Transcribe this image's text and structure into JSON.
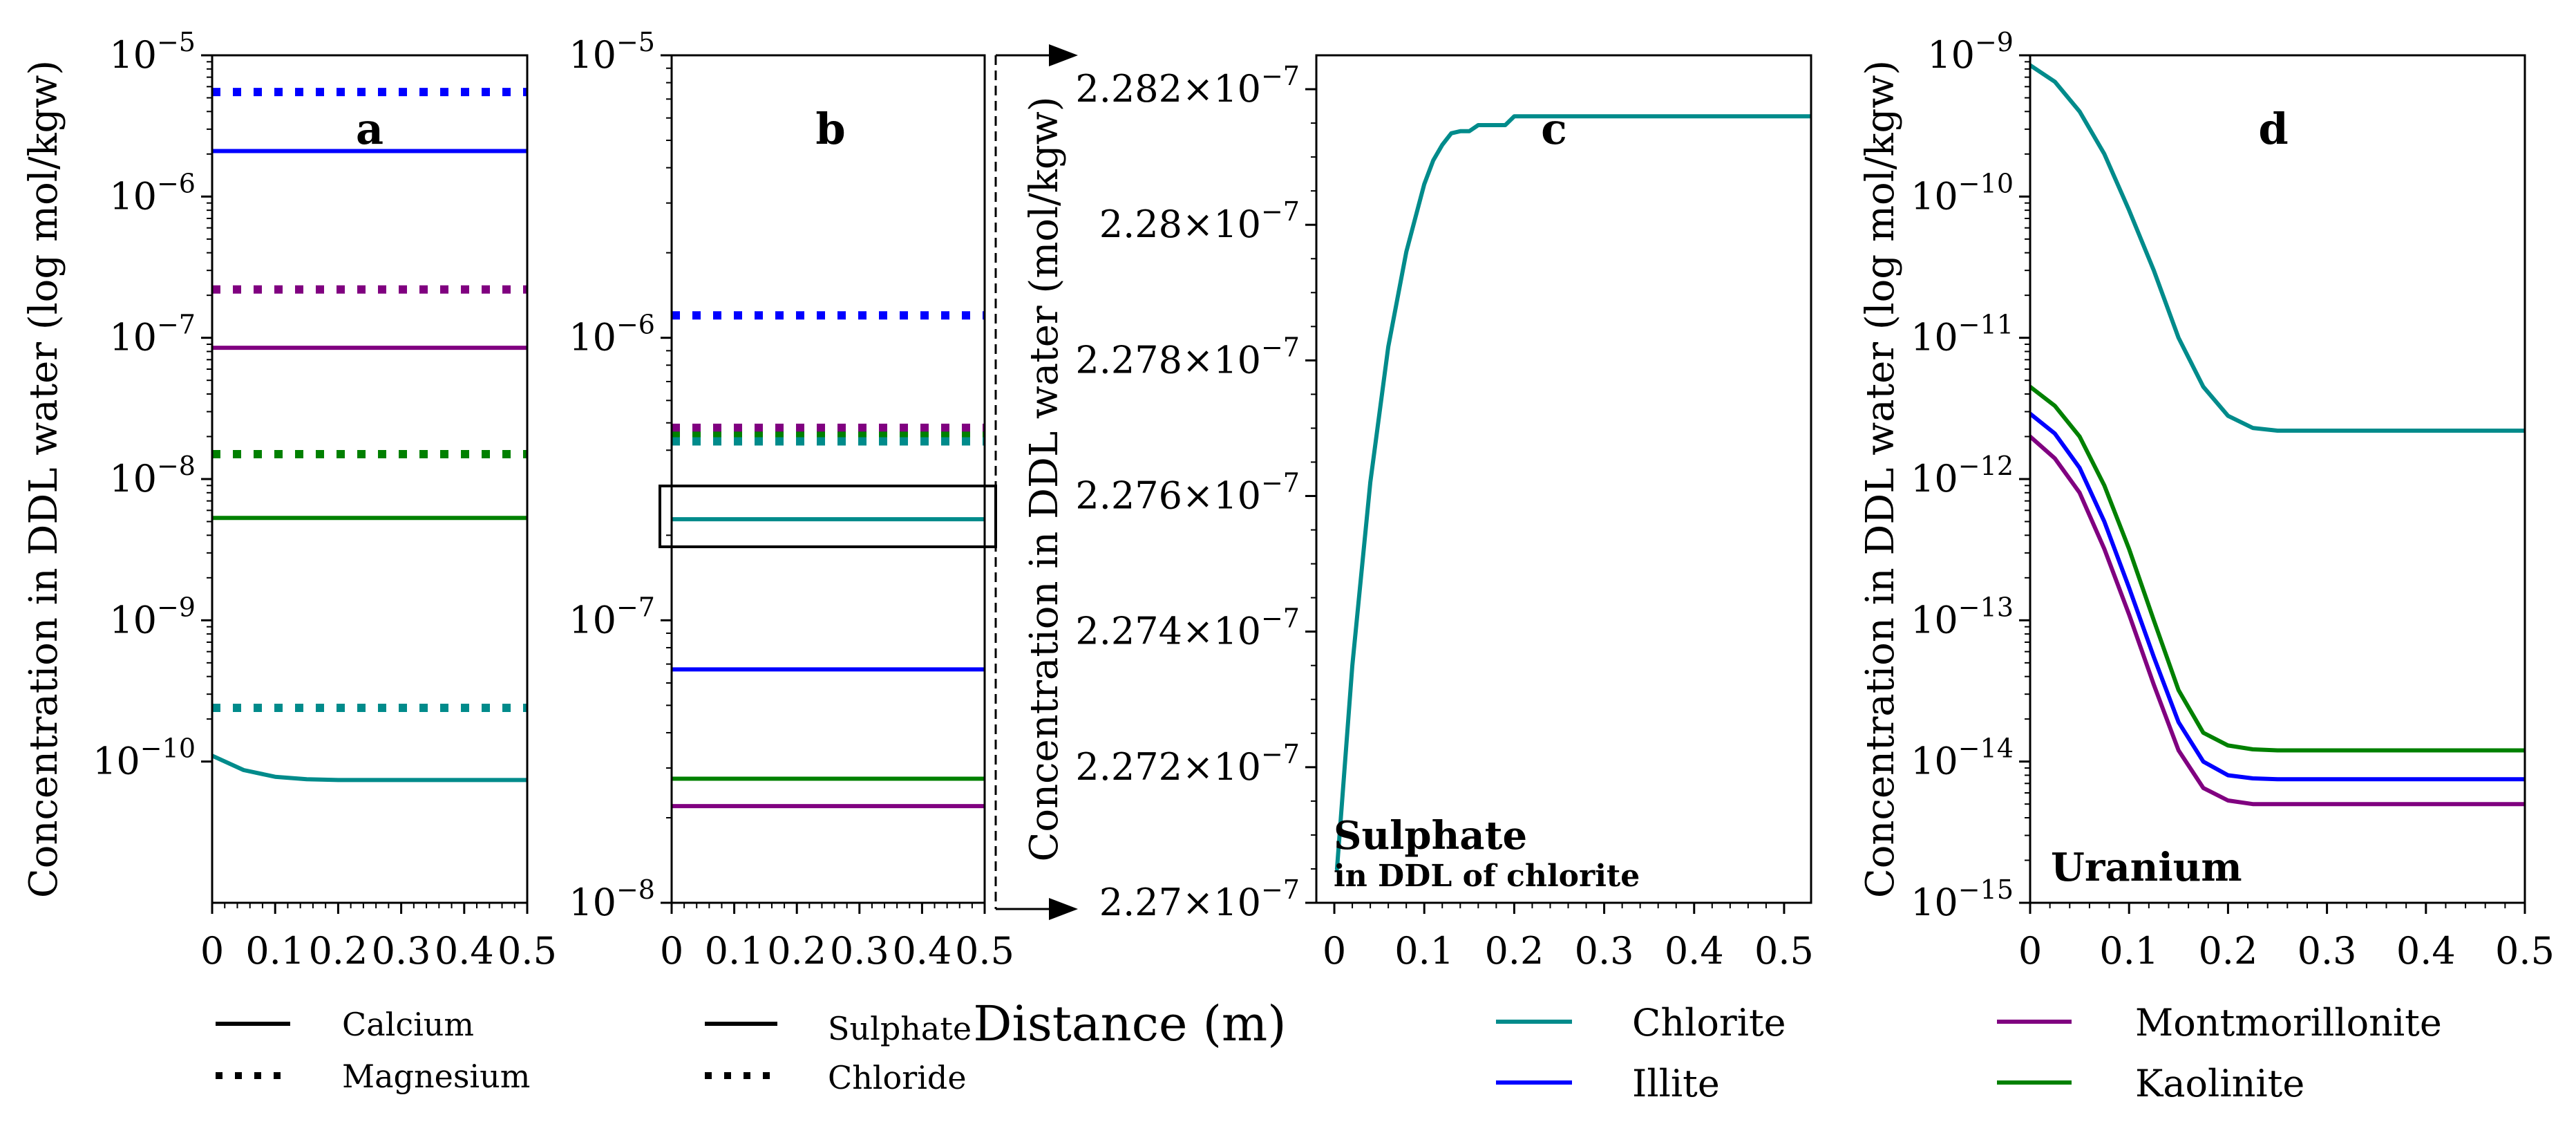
{
  "xlabel": "Distance (m)",
  "colors": {
    "Chlorite": "#008b8b",
    "Illite": "#0000ff",
    "Montmorillonite": "#800080",
    "Kaolinite": "#008000"
  },
  "legend_species_a": [
    {
      "label": "Calcium",
      "style": "solid"
    },
    {
      "label": "Magnesium",
      "style": "dotted"
    }
  ],
  "legend_species_b": [
    {
      "label": "Sulphate",
      "style": "solid"
    },
    {
      "label": "Chloride",
      "style": "dotted"
    }
  ],
  "legend_minerals_1": [
    {
      "label": "Chlorite",
      "color": "#008b8b"
    },
    {
      "label": "Illite",
      "color": "#0000ff"
    }
  ],
  "legend_minerals_2": [
    {
      "label": "Montmorillonite",
      "color": "#800080"
    },
    {
      "label": "Kaolinite",
      "color": "#008000"
    }
  ],
  "chart_data": [
    {
      "id": "a",
      "panel_label": "a",
      "type": "line",
      "yscale": "log",
      "ylabel": "Concentration in DDL water (log mol/kgw)",
      "xlim": [
        0,
        0.5
      ],
      "ylim_exp": [
        -11,
        -5
      ],
      "xticks": [
        "0",
        "0.1",
        "0.2",
        "0.3",
        "0.4",
        "0.5"
      ],
      "ytick_exps": [
        -10,
        -9,
        -8,
        -7,
        -6,
        -5
      ],
      "series": [
        {
          "mineral": "Illite",
          "species": "Magnesium",
          "style": "dotted",
          "x": [
            0,
            0.5
          ],
          "y": [
            5.5e-06,
            5.5e-06
          ]
        },
        {
          "mineral": "Illite",
          "species": "Calcium",
          "style": "solid",
          "x": [
            0,
            0.5
          ],
          "y": [
            2.1e-06,
            2.1e-06
          ]
        },
        {
          "mineral": "Montmorillonite",
          "species": "Magnesium",
          "style": "dotted",
          "x": [
            0,
            0.5
          ],
          "y": [
            2.2e-07,
            2.2e-07
          ]
        },
        {
          "mineral": "Montmorillonite",
          "species": "Calcium",
          "style": "solid",
          "x": [
            0,
            0.5
          ],
          "y": [
            8.5e-08,
            8.5e-08
          ]
        },
        {
          "mineral": "Kaolinite",
          "species": "Magnesium",
          "style": "dotted",
          "x": [
            0,
            0.5
          ],
          "y": [
            1.5e-08,
            1.5e-08
          ]
        },
        {
          "mineral": "Kaolinite",
          "species": "Calcium",
          "style": "solid",
          "x": [
            0,
            0.5
          ],
          "y": [
            5.3e-09,
            5.3e-09
          ]
        },
        {
          "mineral": "Chlorite",
          "species": "Magnesium",
          "style": "dotted",
          "x": [
            0,
            0.5
          ],
          "y": [
            2.4e-10,
            2.4e-10
          ]
        },
        {
          "mineral": "Chlorite",
          "species": "Calcium",
          "style": "solid",
          "x": [
            0,
            0.05,
            0.1,
            0.15,
            0.2,
            0.3,
            0.5
          ],
          "y": [
            1.1e-10,
            8.7e-11,
            7.8e-11,
            7.5e-11,
            7.4e-11,
            7.4e-11,
            7.4e-11
          ]
        }
      ]
    },
    {
      "id": "b",
      "panel_label": "b",
      "type": "line",
      "yscale": "log",
      "ylabel": "",
      "xlim": [
        0,
        0.5
      ],
      "ylim_exp": [
        -8,
        -5
      ],
      "xticks": [
        "0",
        "0.1",
        "0.2",
        "0.3",
        "0.4",
        "0.5"
      ],
      "ytick_exps": [
        -8,
        -7,
        -6,
        -5
      ],
      "series": [
        {
          "mineral": "Illite",
          "species": "Chloride",
          "style": "dotted",
          "x": [
            0,
            0.5
          ],
          "y": [
            1.2e-06,
            1.2e-06
          ]
        },
        {
          "mineral": "Montmorillonite",
          "species": "Chloride",
          "style": "dotted",
          "x": [
            0,
            0.5
          ],
          "y": [
            4.8e-07,
            4.8e-07
          ]
        },
        {
          "mineral": "Kaolinite",
          "species": "Chloride",
          "style": "dotted",
          "x": [
            0,
            0.5
          ],
          "y": [
            4.5e-07,
            4.5e-07
          ]
        },
        {
          "mineral": "Chlorite",
          "species": "Chloride",
          "style": "dotted",
          "x": [
            0,
            0.5
          ],
          "y": [
            4.3e-07,
            4.3e-07
          ]
        },
        {
          "mineral": "Chlorite",
          "species": "Sulphate",
          "style": "solid",
          "x": [
            0,
            0.5
          ],
          "y": [
            2.28e-07,
            2.28e-07
          ]
        },
        {
          "mineral": "Illite",
          "species": "Sulphate",
          "style": "solid",
          "x": [
            0,
            0.5
          ],
          "y": [
            6.7e-08,
            6.7e-08
          ]
        },
        {
          "mineral": "Kaolinite",
          "species": "Sulphate",
          "style": "solid",
          "x": [
            0,
            0.5
          ],
          "y": [
            2.75e-08,
            2.75e-08
          ]
        },
        {
          "mineral": "Montmorillonite",
          "species": "Sulphate",
          "style": "solid",
          "x": [
            0,
            0.5
          ],
          "y": [
            2.2e-08,
            2.2e-08
          ]
        }
      ]
    },
    {
      "id": "c",
      "panel_label": "c",
      "type": "line",
      "yscale": "linear",
      "ylabel": "Concentration in DDL water (mol/kgw)",
      "xlim": [
        -0.02,
        0.53
      ],
      "ylim": [
        2.27e-07,
        2.2825e-07
      ],
      "xticks": [
        "0",
        "0.1",
        "0.2",
        "0.3",
        "0.4",
        "0.5"
      ],
      "yticks": [
        {
          "mantissa": "2.27",
          "exp": "−7",
          "value": 2.27e-07
        },
        {
          "mantissa": "2.272",
          "exp": "−7",
          "value": 2.272e-07
        },
        {
          "mantissa": "2.274",
          "exp": "−7",
          "value": 2.274e-07
        },
        {
          "mantissa": "2.276",
          "exp": "−7",
          "value": 2.276e-07
        },
        {
          "mantissa": "2.278",
          "exp": "−7",
          "value": 2.278e-07
        },
        {
          "mantissa": "2.28",
          "exp": "−7",
          "value": 2.28e-07
        },
        {
          "mantissa": "2.282",
          "exp": "−7",
          "value": 2.282e-07
        }
      ],
      "annotation": {
        "title": "Sulphate",
        "subtitle": "in DDL of chlorite"
      },
      "series": [
        {
          "mineral": "Chlorite",
          "species": "Sulphate",
          "style": "solid",
          "x": [
            0.003,
            0.02,
            0.04,
            0.06,
            0.08,
            0.1,
            0.11,
            0.12,
            0.13,
            0.14,
            0.15,
            0.16,
            0.17,
            0.19,
            0.2,
            0.25,
            0.3,
            0.4,
            0.53
          ],
          "y": [
            2.2705e-07,
            2.2735e-07,
            2.2762e-07,
            2.2782e-07,
            2.2796e-07,
            2.2806e-07,
            2.28095e-07,
            2.28118e-07,
            2.28135e-07,
            2.28138e-07,
            2.28138e-07,
            2.28147e-07,
            2.28147e-07,
            2.28147e-07,
            2.2816e-07,
            2.2816e-07,
            2.2816e-07,
            2.2816e-07,
            2.2816e-07
          ]
        }
      ]
    },
    {
      "id": "d",
      "panel_label": "d",
      "type": "line",
      "yscale": "log",
      "ylabel": "Concentration in DDL water (log mol/kgw)",
      "xlim": [
        0,
        0.5
      ],
      "ylim_exp": [
        -15,
        -9
      ],
      "xticks": [
        "0",
        "0.1",
        "0.2",
        "0.3",
        "0.4",
        "0.5"
      ],
      "ytick_exps": [
        -15,
        -14,
        -13,
        -12,
        -11,
        -10,
        -9
      ],
      "annotation": {
        "title": "Uranium"
      },
      "series": [
        {
          "mineral": "Chlorite",
          "species": "Uranium",
          "style": "solid",
          "x": [
            0,
            0.025,
            0.05,
            0.075,
            0.1,
            0.125,
            0.15,
            0.175,
            0.2,
            0.225,
            0.25,
            0.3,
            0.4,
            0.5
          ],
          "y": [
            8.5e-10,
            6.5e-10,
            4e-10,
            2e-10,
            8e-11,
            3e-11,
            1e-11,
            4.5e-12,
            2.8e-12,
            2.3e-12,
            2.2e-12,
            2.2e-12,
            2.2e-12,
            2.2e-12
          ]
        },
        {
          "mineral": "Kaolinite",
          "species": "Uranium",
          "style": "solid",
          "x": [
            0,
            0.025,
            0.05,
            0.075,
            0.1,
            0.125,
            0.15,
            0.175,
            0.2,
            0.225,
            0.25,
            0.3,
            0.4,
            0.5
          ],
          "y": [
            4.5e-12,
            3.3e-12,
            2e-12,
            9e-13,
            3.2e-13,
            1e-13,
            3.2e-14,
            1.6e-14,
            1.3e-14,
            1.22e-14,
            1.2e-14,
            1.2e-14,
            1.2e-14,
            1.2e-14
          ]
        },
        {
          "mineral": "Illite",
          "species": "Uranium",
          "style": "solid",
          "x": [
            0,
            0.025,
            0.05,
            0.075,
            0.1,
            0.125,
            0.15,
            0.175,
            0.2,
            0.225,
            0.25,
            0.3,
            0.4,
            0.5
          ],
          "y": [
            2.9e-12,
            2.1e-12,
            1.2e-12,
            5e-13,
            1.7e-13,
            5.5e-14,
            1.9e-14,
            1e-14,
            8e-15,
            7.6e-15,
            7.5e-15,
            7.5e-15,
            7.5e-15,
            7.5e-15
          ]
        },
        {
          "mineral": "Montmorillonite",
          "species": "Uranium",
          "style": "solid",
          "x": [
            0,
            0.025,
            0.05,
            0.075,
            0.1,
            0.125,
            0.15,
            0.175,
            0.2,
            0.225,
            0.25,
            0.3,
            0.4,
            0.5
          ],
          "y": [
            2e-12,
            1.4e-12,
            8e-13,
            3.2e-13,
            1.1e-13,
            3.5e-14,
            1.2e-14,
            6.5e-15,
            5.3e-15,
            5e-15,
            5e-15,
            5e-15,
            5e-15,
            5e-15
          ]
        }
      ]
    }
  ]
}
